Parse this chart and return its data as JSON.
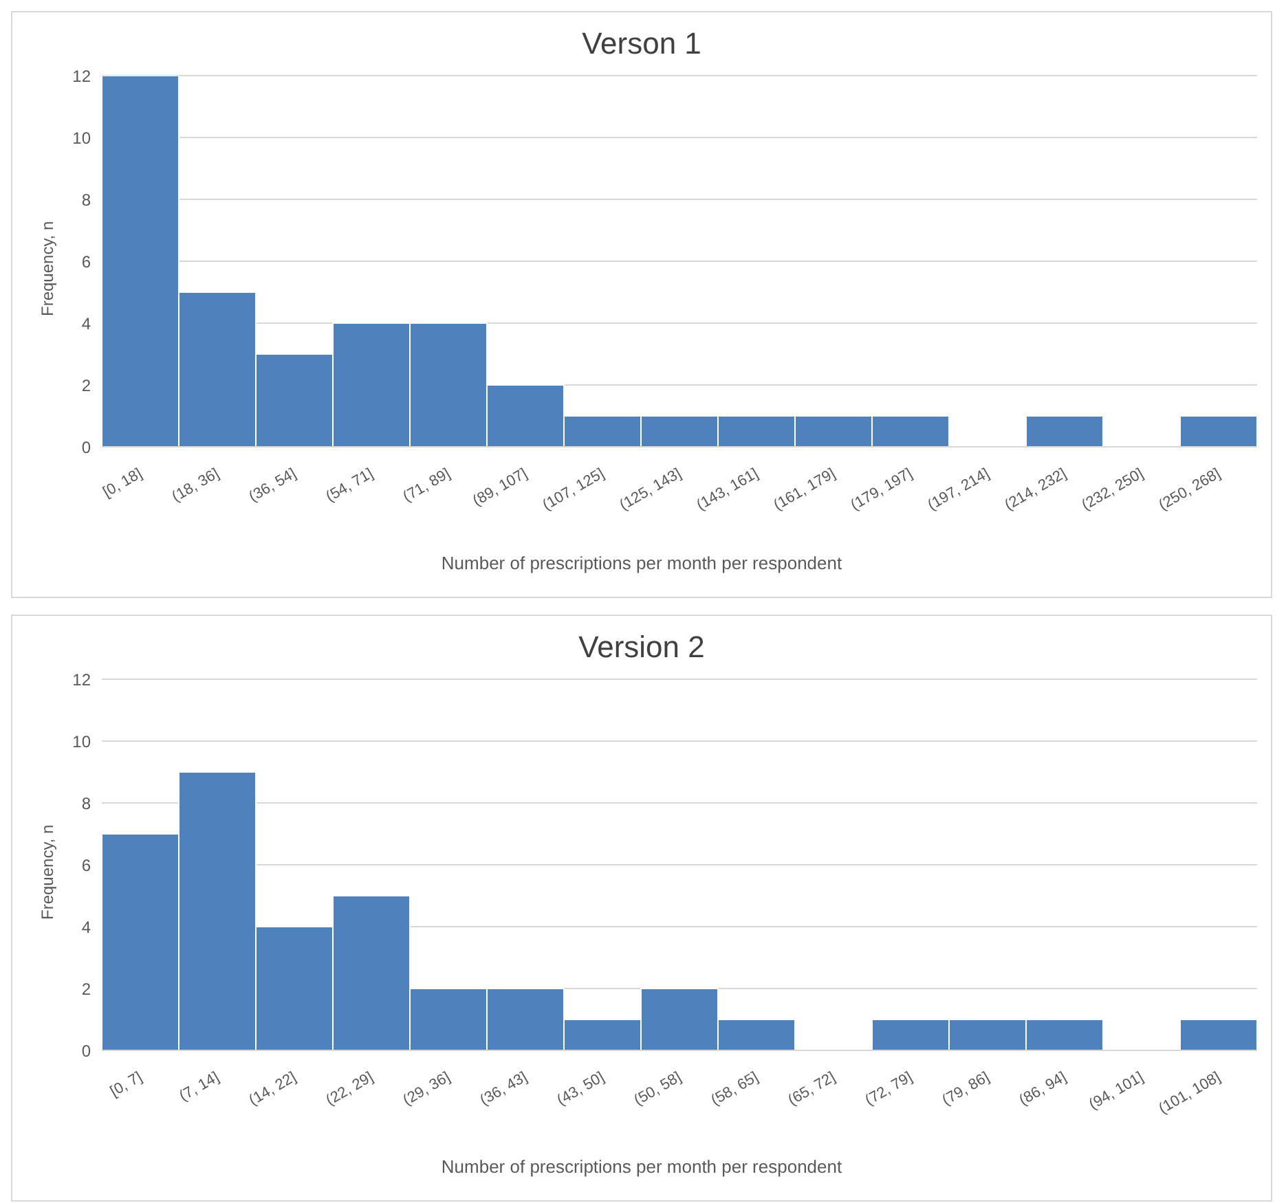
{
  "chart_data": [
    {
      "type": "bar",
      "title": "Verson 1",
      "xlabel": "Number of prescriptions per month per respondent",
      "ylabel": "Frequency, n",
      "categories": [
        "[0, 18]",
        "(18, 36]",
        "(36, 54]",
        "(54, 71]",
        "(71, 89]",
        "(89, 107]",
        "(107, 125]",
        "(125, 143]",
        "(143, 161]",
        "(161, 179]",
        "(179, 197]",
        "(197, 214]",
        "(214, 232]",
        "(232, 250]",
        "(250, 268]"
      ],
      "values": [
        12,
        5,
        3,
        4,
        4,
        2,
        1,
        1,
        1,
        1,
        1,
        0,
        1,
        0,
        1
      ],
      "color": "#4f81bd",
      "ylim": [
        0,
        12
      ],
      "yticks": [
        0,
        2,
        4,
        6,
        8,
        10,
        12
      ],
      "grid": "y"
    },
    {
      "type": "bar",
      "title": "Version 2",
      "xlabel": "Number of prescriptions per month per respondent",
      "ylabel": "Frequency, n",
      "categories": [
        "[0, 7]",
        "(7, 14]",
        "(14, 22]",
        "(22, 29]",
        "(29, 36]",
        "(36, 43]",
        "(43, 50]",
        "(50, 58]",
        "(58, 65]",
        "(65, 72]",
        "(72, 79]",
        "(79, 86]",
        "(86, 94]",
        "(94, 101]",
        "(101, 108]"
      ],
      "values": [
        7,
        9,
        4,
        5,
        2,
        2,
        1,
        2,
        1,
        0,
        1,
        1,
        1,
        0,
        1
      ],
      "color": "#4f81bd",
      "ylim": [
        0,
        12
      ],
      "yticks": [
        0,
        2,
        4,
        6,
        8,
        10,
        12
      ],
      "grid": "y"
    }
  ]
}
